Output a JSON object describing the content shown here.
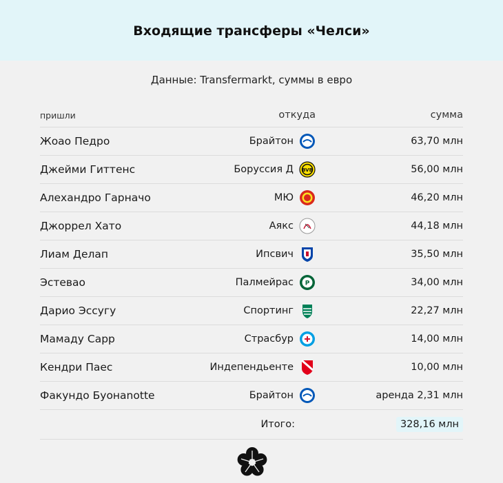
{
  "header": {
    "title": "Входящие трансферы «Челси»"
  },
  "subtitle": "Данные: Transfermarkt, суммы в евро",
  "columns": {
    "player": "пришли",
    "from": "откуда",
    "fee": "сумма"
  },
  "rows": [
    {
      "player": "Жоао Педро",
      "from": "Брайтон",
      "fee": "63,70 млн",
      "logo": "brighton-logo-icon"
    },
    {
      "player": "Джейми Гиттенс",
      "from": "Боруссия Д",
      "fee": "56,00 млн",
      "logo": "dortmund-logo-icon"
    },
    {
      "player": "Алехандро Гарначо",
      "from": "МЮ",
      "fee": "46,20 млн",
      "logo": "man-utd-logo-icon"
    },
    {
      "player": "Джоррел Хато",
      "from": "Аякс",
      "fee": "44,18 млн",
      "logo": "ajax-logo-icon"
    },
    {
      "player": "Лиам Делап",
      "from": "Ипсвич",
      "fee": "35,50 млн",
      "logo": "ipswich-logo-icon"
    },
    {
      "player": "Эстевао",
      "from": "Палмейрас",
      "fee": "34,00 млн",
      "logo": "palmeiras-logo-icon"
    },
    {
      "player": "Дарио Эссугу",
      "from": "Спортинг",
      "fee": "22,27 млн",
      "logo": "sporting-logo-icon"
    },
    {
      "player": "Мамаду Сарр",
      "from": "Страсбур",
      "fee": "14,00 млн",
      "logo": "strasbourg-logo-icon"
    },
    {
      "player": "Кендри Паес",
      "from": "Индепендьенте",
      "fee": "10,00 млн",
      "logo": "independiente-logo-icon"
    },
    {
      "player": "Факундо Буонаnotte",
      "from": "Брайтон",
      "fee": "аренда 2,31 млн",
      "logo": "brighton-logo-icon"
    }
  ],
  "total": {
    "label": "Итого:",
    "value": "328,16 млн"
  },
  "footer": {
    "icon": "flower-logo-icon"
  }
}
